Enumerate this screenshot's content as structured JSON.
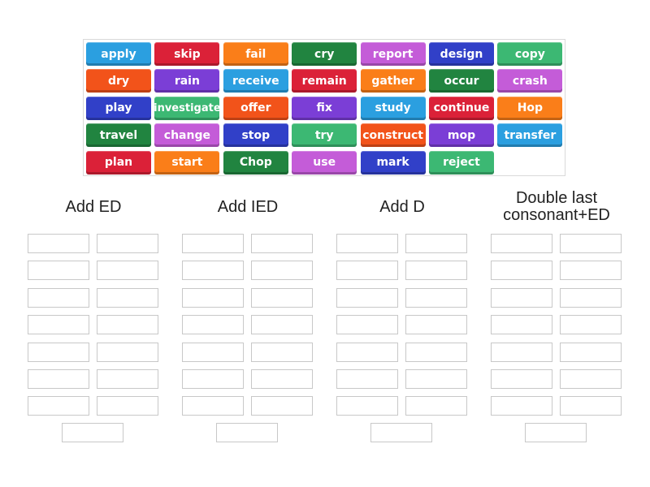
{
  "word_bank": {
    "rows": [
      [
        {
          "text": "apply",
          "color": "#2b9fe0"
        },
        {
          "text": "skip",
          "color": "#db2138"
        },
        {
          "text": "fail",
          "color": "#fa7e19"
        },
        {
          "text": "cry",
          "color": "#218440"
        },
        {
          "text": "report",
          "color": "#c45cd8"
        },
        {
          "text": "design",
          "color": "#3140c8"
        },
        {
          "text": "copy",
          "color": "#3cb873"
        }
      ],
      [
        {
          "text": "dry",
          "color": "#f2531a"
        },
        {
          "text": "rain",
          "color": "#7b3ed6"
        },
        {
          "text": "receive",
          "color": "#2b9fe0"
        },
        {
          "text": "remain",
          "color": "#db2138"
        },
        {
          "text": "gather",
          "color": "#fa7e19"
        },
        {
          "text": "occur",
          "color": "#218440"
        },
        {
          "text": "crash",
          "color": "#c45cd8"
        }
      ],
      [
        {
          "text": "play",
          "color": "#3140c8"
        },
        {
          "text": "investigate",
          "color": "#3cb873"
        },
        {
          "text": "offer",
          "color": "#f2531a"
        },
        {
          "text": "fix",
          "color": "#7b3ed6"
        },
        {
          "text": "study",
          "color": "#2b9fe0"
        },
        {
          "text": "continue",
          "color": "#db2138"
        },
        {
          "text": "Hop",
          "color": "#fa7e19"
        }
      ],
      [
        {
          "text": "travel",
          "color": "#218440"
        },
        {
          "text": "change",
          "color": "#c45cd8"
        },
        {
          "text": "stop",
          "color": "#3140c8"
        },
        {
          "text": "try",
          "color": "#3cb873"
        },
        {
          "text": "construct",
          "color": "#f2531a"
        },
        {
          "text": "mop",
          "color": "#7b3ed6"
        },
        {
          "text": "transfer",
          "color": "#2b9fe0"
        }
      ],
      [
        {
          "text": "plan",
          "color": "#db2138"
        },
        {
          "text": "start",
          "color": "#fa7e19"
        },
        {
          "text": "Chop",
          "color": "#218440"
        },
        {
          "text": "use",
          "color": "#c45cd8"
        },
        {
          "text": "mark",
          "color": "#3140c8"
        },
        {
          "text": "reject",
          "color": "#3cb873"
        }
      ]
    ]
  },
  "groups": [
    {
      "title": "Add ED",
      "slots": 15
    },
    {
      "title": "Add IED",
      "slots": 15
    },
    {
      "title": "Add D",
      "slots": 15
    },
    {
      "title": "Double last\nconsonant+ED",
      "slots": 15
    }
  ]
}
